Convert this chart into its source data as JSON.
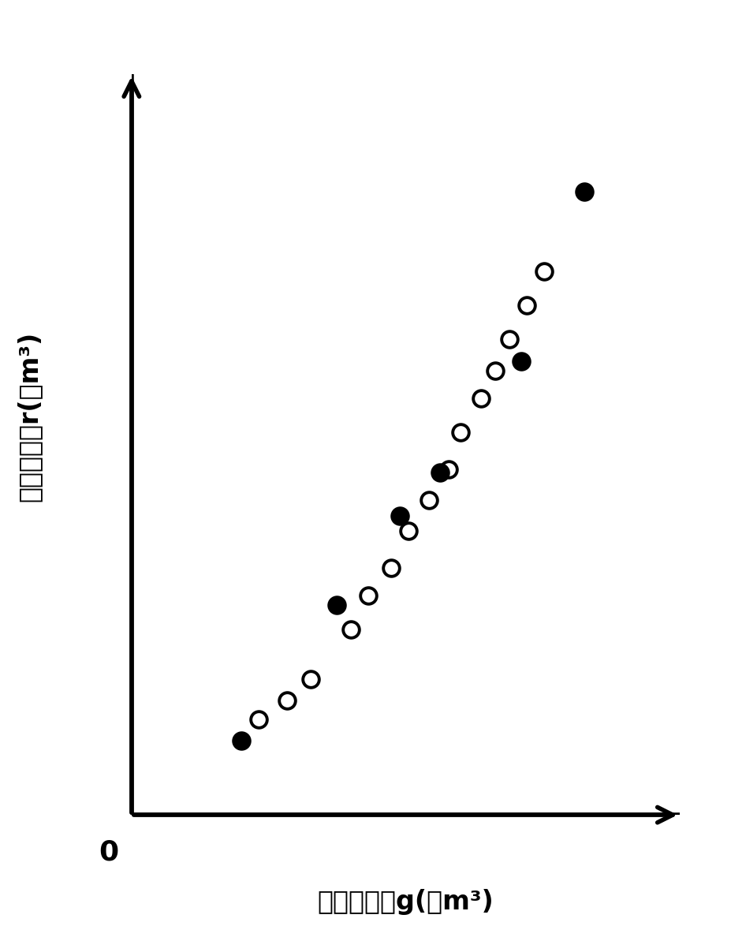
{
  "open_circles_x": [
    2.2,
    2.7,
    3.1,
    3.8,
    4.1,
    4.5,
    4.8,
    5.15,
    5.5,
    5.7,
    6.05,
    6.3,
    6.55,
    6.85,
    7.15
  ],
  "open_circles_y": [
    1.55,
    1.85,
    2.2,
    3.0,
    3.55,
    4.0,
    4.6,
    5.1,
    5.6,
    6.2,
    6.75,
    7.2,
    7.7,
    8.25,
    8.8
  ],
  "filled_circles_x": [
    1.9,
    3.55,
    4.65,
    5.35,
    6.75,
    7.85
  ],
  "filled_circles_y": [
    1.2,
    3.4,
    4.85,
    5.55,
    7.35,
    10.1
  ],
  "open_marker_size": 220,
  "filled_marker_size": 220,
  "open_color": "white",
  "open_edgecolor": "black",
  "filled_color": "black",
  "xlabel": "河川基流量g(万m³)",
  "ylabel": "河川径流量r(万m³)",
  "xlim": [
    0,
    9.5
  ],
  "ylim": [
    0,
    12
  ],
  "zero_label": "0",
  "background_color": "#ffffff",
  "arrow_color": "black",
  "axis_linewidth": 4.0,
  "arrow_mutation_scale": 35
}
